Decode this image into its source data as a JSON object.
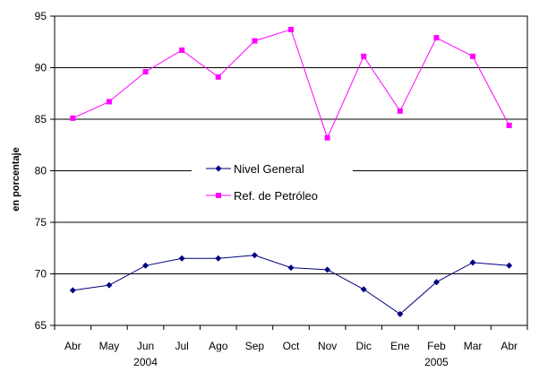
{
  "chart_data": {
    "type": "line",
    "ylabel": "en porcentaje",
    "ylim": [
      65,
      95
    ],
    "yticks": [
      65,
      70,
      75,
      80,
      85,
      90,
      95
    ],
    "categories": [
      "Abr",
      "May",
      "Jun",
      "Jul",
      "Ago",
      "Sep",
      "Oct",
      "Nov",
      "Dic",
      "Ene",
      "Feb",
      "Mar",
      "Abr"
    ],
    "year_labels": [
      {
        "label": "2004",
        "category_index": 2
      },
      {
        "label": "2005",
        "category_index": 10
      }
    ],
    "grid": true,
    "legend_position": "center-left",
    "series": [
      {
        "name": "Nivel General",
        "color": "#000080",
        "marker": "diamond",
        "values": [
          68.4,
          68.9,
          70.8,
          71.5,
          71.5,
          71.8,
          70.6,
          70.4,
          68.5,
          66.1,
          69.2,
          71.1,
          70.8
        ]
      },
      {
        "name": "Ref. de Petróleo",
        "color": "#FF00FF",
        "marker": "square",
        "values": [
          85.1,
          86.7,
          89.6,
          91.7,
          89.1,
          92.6,
          93.7,
          83.2,
          91.1,
          85.8,
          92.9,
          91.1,
          84.4
        ]
      }
    ]
  }
}
